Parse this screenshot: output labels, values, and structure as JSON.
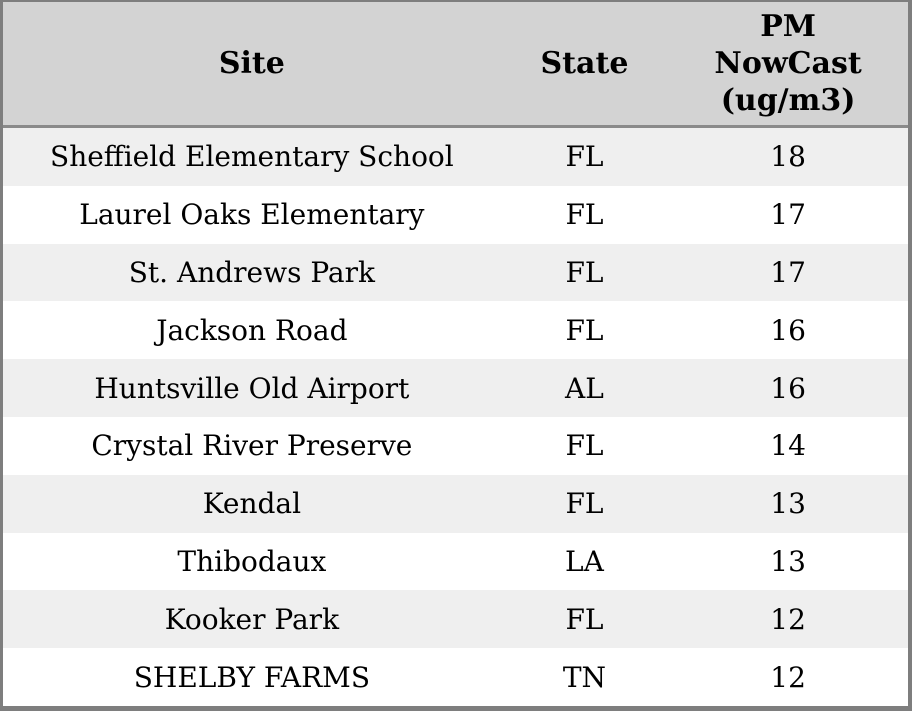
{
  "header": {
    "site": "Site",
    "state": "State",
    "pm": "PM\nNowCast\n(ug/m3)"
  },
  "rows": [
    {
      "site": "Sheffield Elementary School",
      "state": "FL",
      "pm": "18"
    },
    {
      "site": "Laurel Oaks Elementary",
      "state": "FL",
      "pm": "17"
    },
    {
      "site": "St. Andrews Park",
      "state": "FL",
      "pm": "17"
    },
    {
      "site": "Jackson Road",
      "state": "FL",
      "pm": "16"
    },
    {
      "site": "Huntsville Old Airport",
      "state": "AL",
      "pm": "16"
    },
    {
      "site": "Crystal River Preserve",
      "state": "FL",
      "pm": "14"
    },
    {
      "site": "Kendal",
      "state": "FL",
      "pm": "13"
    },
    {
      "site": "Thibodaux",
      "state": "LA",
      "pm": "13"
    },
    {
      "site": "Kooker Park",
      "state": "FL",
      "pm": "12"
    },
    {
      "site": "SHELBY FARMS",
      "state": "TN",
      "pm": "12"
    }
  ],
  "colors": {
    "header_bg": "#d3d3d3",
    "row_alt_bg": "#efefef",
    "row_bg": "#ffffff",
    "frame_border": "#7e7e7e",
    "header_separator": "#8a8a8a",
    "text": "#000000"
  },
  "chart_data": {
    "type": "table",
    "columns": [
      "Site",
      "State",
      "PM NowCast (ug/m3)"
    ],
    "rows": [
      [
        "Sheffield Elementary School",
        "FL",
        18
      ],
      [
        "Laurel Oaks Elementary",
        "FL",
        17
      ],
      [
        "St. Andrews Park",
        "FL",
        17
      ],
      [
        "Jackson Road",
        "FL",
        16
      ],
      [
        "Huntsville Old Airport",
        "AL",
        16
      ],
      [
        "Crystal River Preserve",
        "FL",
        14
      ],
      [
        "Kendal",
        "FL",
        13
      ],
      [
        "Thibodaux",
        "LA",
        13
      ],
      [
        "Kooker Park",
        "FL",
        12
      ],
      [
        "SHELBY FARMS",
        "TN",
        12
      ]
    ],
    "layout_hints": {
      "striped_rows": true,
      "header_background": "#d3d3d3",
      "alignment": "center",
      "sorted_by": "PM NowCast (ug/m3) descending"
    }
  }
}
